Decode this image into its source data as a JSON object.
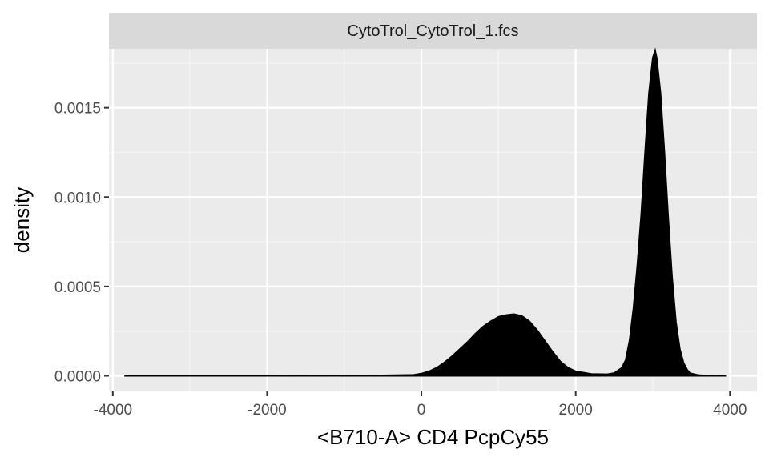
{
  "chart_data": {
    "type": "area",
    "facet_title": "CytoTrol_CytoTrol_1.fcs",
    "xlabel": "<B710-A> CD4 PcpCy55",
    "ylabel": "density",
    "xlim": [
      -4050,
      4350
    ],
    "ylim": [
      -8.75e-05,
      0.00183
    ],
    "x_ticks": [
      -4000,
      -2000,
      0,
      2000,
      4000
    ],
    "x_tick_labels": [
      "-4000",
      "-2000",
      "0",
      "2000",
      "4000"
    ],
    "y_ticks": [
      0,
      0.0005,
      0.001,
      0.0015
    ],
    "y_tick_labels": [
      "0.0000",
      "0.0005",
      "0.0010",
      "0.0015"
    ],
    "grid": true,
    "series": [
      {
        "fill": "#000000",
        "x": [
          -3850,
          -3000,
          -2000,
          -1000,
          -500,
          -100,
          0,
          100,
          200,
          300,
          400,
          500,
          600,
          700,
          800,
          900,
          1000,
          1100,
          1200,
          1300,
          1400,
          1500,
          1600,
          1700,
          1800,
          1900,
          2000,
          2200,
          2400,
          2500,
          2600,
          2650,
          2700,
          2750,
          2800,
          2850,
          2900,
          2950,
          3000,
          3030,
          3050,
          3100,
          3150,
          3200,
          3250,
          3300,
          3350,
          3400,
          3450,
          3500,
          3600,
          3700,
          3800,
          3950
        ],
        "y": [
          0,
          0,
          0,
          1e-06,
          2e-06,
          5e-06,
          1.2e-05,
          2.5e-05,
          4.5e-05,
          7.5e-05,
          0.00011,
          0.00015,
          0.00019,
          0.000235,
          0.000275,
          0.000305,
          0.00033,
          0.00034,
          0.000345,
          0.000335,
          0.000305,
          0.000255,
          0.000195,
          0.000135,
          8e-05,
          4.5e-05,
          2.5e-05,
          1e-05,
          8e-06,
          1.5e-05,
          4.5e-05,
          9e-05,
          0.0002,
          0.00038,
          0.00062,
          0.0009,
          0.00125,
          0.00158,
          0.00178,
          0.00182,
          0.00178,
          0.00158,
          0.00125,
          0.00088,
          0.00055,
          0.0003,
          0.00015,
          7e-05,
          3e-05,
          1.2e-05,
          3e-06,
          1e-06,
          0,
          0
        ]
      }
    ]
  }
}
